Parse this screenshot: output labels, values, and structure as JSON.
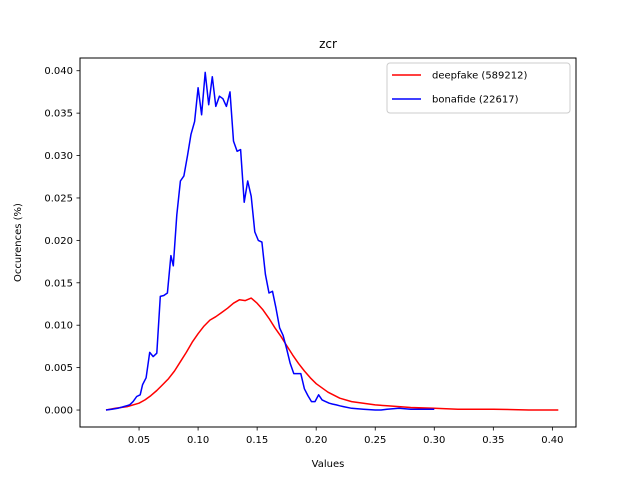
{
  "chart_data": {
    "type": "line",
    "title": "zcr",
    "xlabel": "Values",
    "ylabel": "Occurences (%)",
    "xlim": [
      0.0,
      0.42
    ],
    "ylim": [
      -0.002,
      0.0415
    ],
    "xticks": [
      0.05,
      0.1,
      0.15,
      0.2,
      0.25,
      0.3,
      0.35,
      0.4
    ],
    "xtick_labels": [
      "0.05",
      "0.10",
      "0.15",
      "0.20",
      "0.25",
      "0.30",
      "0.35",
      "0.40"
    ],
    "yticks": [
      0.0,
      0.005,
      0.01,
      0.015,
      0.02,
      0.025,
      0.03,
      0.035,
      0.04
    ],
    "ytick_labels": [
      "0.000",
      "0.005",
      "0.010",
      "0.015",
      "0.020",
      "0.025",
      "0.030",
      "0.035",
      "0.040"
    ],
    "grid": false,
    "legend_position": "top-right",
    "series": [
      {
        "name": "deepfake (589212)",
        "color": "#ff0000",
        "x": [
          0.022,
          0.03,
          0.04,
          0.05,
          0.055,
          0.06,
          0.065,
          0.07,
          0.075,
          0.08,
          0.085,
          0.09,
          0.095,
          0.1,
          0.105,
          0.11,
          0.115,
          0.12,
          0.125,
          0.13,
          0.135,
          0.14,
          0.145,
          0.15,
          0.155,
          0.16,
          0.165,
          0.17,
          0.175,
          0.18,
          0.185,
          0.19,
          0.195,
          0.2,
          0.21,
          0.22,
          0.23,
          0.24,
          0.25,
          0.26,
          0.27,
          0.28,
          0.3,
          0.32,
          0.35,
          0.38,
          0.405
        ],
        "y": [
          0.0,
          0.0002,
          0.0004,
          0.0008,
          0.0012,
          0.0017,
          0.0023,
          0.003,
          0.0037,
          0.0046,
          0.0057,
          0.0068,
          0.008,
          0.009,
          0.0099,
          0.0106,
          0.011,
          0.0115,
          0.012,
          0.0126,
          0.013,
          0.0129,
          0.0132,
          0.0126,
          0.0118,
          0.0108,
          0.0097,
          0.0087,
          0.0076,
          0.0065,
          0.0055,
          0.0046,
          0.0038,
          0.0031,
          0.0021,
          0.0014,
          0.001,
          0.0008,
          0.0006,
          0.0005,
          0.0004,
          0.0003,
          0.0002,
          0.0001,
          0.0001,
          0.0,
          0.0
        ]
      },
      {
        "name": "bonafide (22617)",
        "color": "#0000ff",
        "x": [
          0.022,
          0.027,
          0.032,
          0.037,
          0.042,
          0.045,
          0.048,
          0.051,
          0.053,
          0.056,
          0.059,
          0.062,
          0.065,
          0.068,
          0.071,
          0.074,
          0.077,
          0.079,
          0.082,
          0.085,
          0.088,
          0.091,
          0.094,
          0.097,
          0.1,
          0.103,
          0.106,
          0.109,
          0.112,
          0.115,
          0.118,
          0.121,
          0.124,
          0.127,
          0.13,
          0.133,
          0.136,
          0.139,
          0.142,
          0.145,
          0.148,
          0.151,
          0.154,
          0.157,
          0.16,
          0.163,
          0.166,
          0.169,
          0.172,
          0.175,
          0.178,
          0.181,
          0.184,
          0.187,
          0.19,
          0.193,
          0.196,
          0.199,
          0.202,
          0.205,
          0.208,
          0.211,
          0.214,
          0.217,
          0.22,
          0.223,
          0.23,
          0.24,
          0.25,
          0.255,
          0.26,
          0.27,
          0.28,
          0.29,
          0.3
        ],
        "y": [
          0.0,
          0.0001,
          0.0002,
          0.0004,
          0.0006,
          0.001,
          0.0016,
          0.0018,
          0.003,
          0.0038,
          0.0068,
          0.0063,
          0.0067,
          0.0134,
          0.0135,
          0.0138,
          0.0182,
          0.017,
          0.023,
          0.027,
          0.0276,
          0.03,
          0.0325,
          0.034,
          0.038,
          0.0348,
          0.0398,
          0.036,
          0.0393,
          0.0358,
          0.037,
          0.0367,
          0.0358,
          0.0375,
          0.0317,
          0.0305,
          0.0307,
          0.0245,
          0.027,
          0.0252,
          0.021,
          0.02,
          0.0198,
          0.016,
          0.0138,
          0.014,
          0.012,
          0.0097,
          0.0088,
          0.0072,
          0.0055,
          0.0043,
          0.0043,
          0.0043,
          0.0025,
          0.0017,
          0.001,
          0.001,
          0.0018,
          0.0012,
          0.001,
          0.0008,
          0.0007,
          0.0006,
          0.0005,
          0.0004,
          0.0002,
          0.0001,
          0.0,
          0.0,
          0.0001,
          0.0002,
          0.0001,
          0.0001,
          0.0001
        ]
      }
    ]
  }
}
